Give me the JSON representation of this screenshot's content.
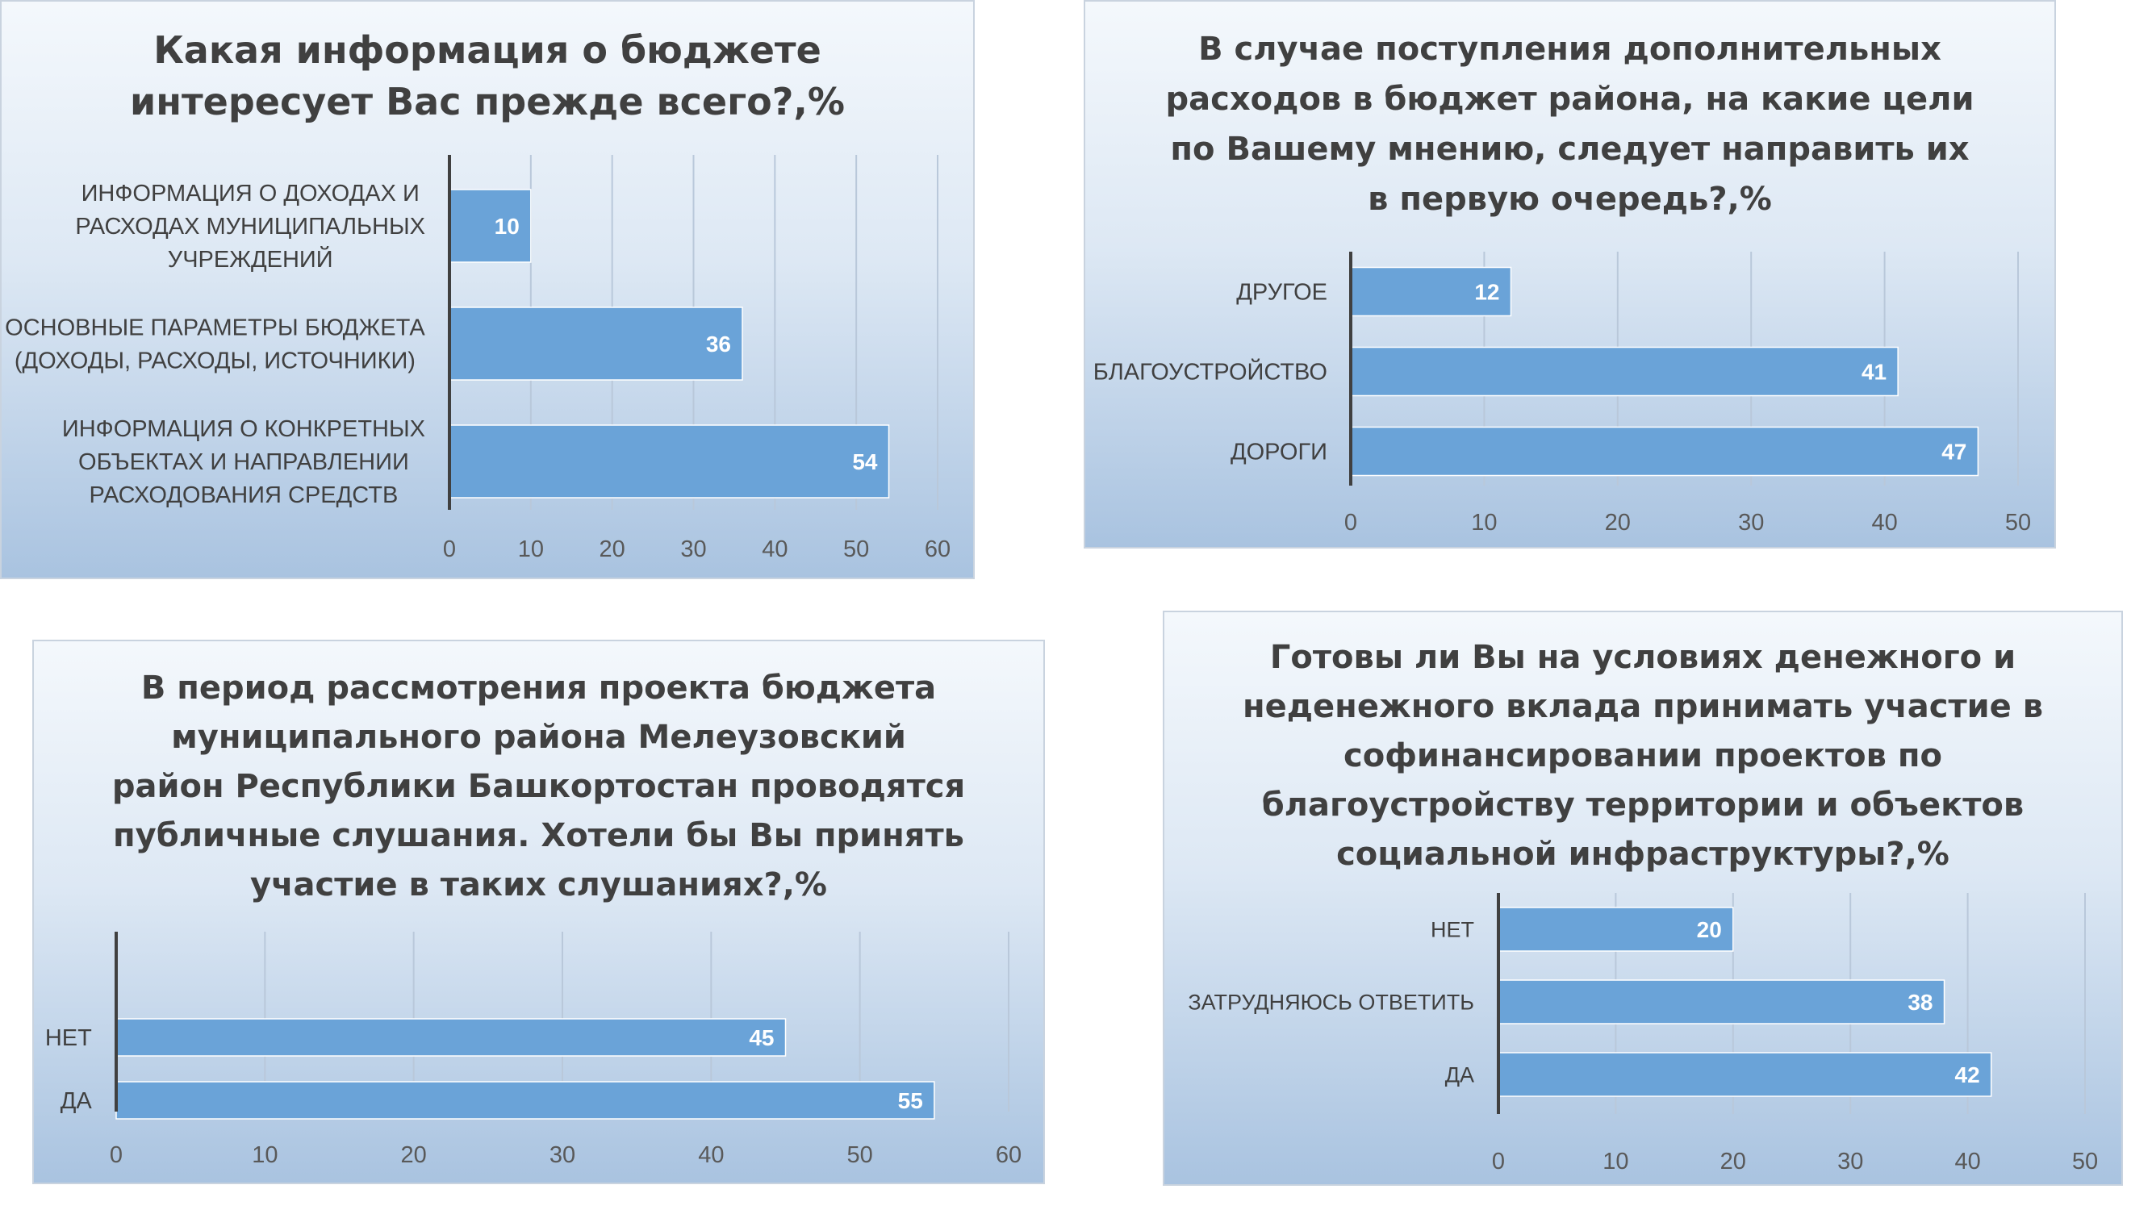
{
  "chart_data": [
    {
      "type": "bar",
      "orientation": "horizontal",
      "title": "Какая информация о бюджете\nинтересует Вас прежде всего?,%",
      "categories": [
        [
          "ИНФОРМАЦИЯ О ДОХОДАХ И",
          "РАСХОДАХ МУНИЦИПАЛЬНЫХ",
          "УЧРЕЖДЕНИЙ"
        ],
        [
          "ОСНОВНЫЕ ПАРАМЕТРЫ БЮДЖЕТА",
          "(ДОХОДЫ, РАСХОДЫ, ИСТОЧНИКИ)"
        ],
        [
          "ИНФОРМАЦИЯ О КОНКРЕТНЫХ",
          "ОБЪЕКТАХ И НАПРАВЛЕНИИ",
          "РАСХОДОВАНИЯ СРЕДСТВ"
        ]
      ],
      "values": [
        10,
        36,
        54
      ],
      "xlim": [
        0,
        60
      ],
      "ticks": [
        0,
        10,
        20,
        30,
        40,
        50,
        60
      ],
      "grid": true,
      "bar_color": "#6aa3d8"
    },
    {
      "type": "bar",
      "orientation": "horizontal",
      "title": "В случае поступления дополнительных\nрасходов в бюджет района, на какие цели\nпо Вашему мнению, следует направить их\nв первую очередь?,%",
      "categories": [
        [
          "ДРУГОЕ"
        ],
        [
          "БЛАГОУСТРОЙСТВО"
        ],
        [
          "ДОРОГИ"
        ]
      ],
      "values": [
        12,
        41,
        47
      ],
      "xlim": [
        0,
        50
      ],
      "ticks": [
        0,
        10,
        20,
        30,
        40,
        50
      ],
      "grid": true,
      "bar_color": "#6aa3d8"
    },
    {
      "type": "bar",
      "orientation": "horizontal",
      "title": "В период рассмотрения проекта бюджета\nмуниципального района Мелеузовский\nрайон Республики Башкортостан проводятся\nпубличные слушания. Хотели бы Вы принять\nучастие в таких слушаниях?,%",
      "categories": [
        [
          "НЕТ"
        ],
        [
          "ДА"
        ]
      ],
      "values": [
        45,
        55
      ],
      "xlim": [
        0,
        60
      ],
      "ticks": [
        0,
        10,
        20,
        30,
        40,
        50,
        60
      ],
      "grid": true,
      "bar_color": "#6aa3d8"
    },
    {
      "type": "bar",
      "orientation": "horizontal",
      "title": "Готовы ли Вы на условиях денежного и\nнеденежного вклада принимать участие в\nсофинансировании проектов по\nблагоустройству территории и объектов\nсоциальной инфраструктуры?,%",
      "categories": [
        [
          "НЕТ"
        ],
        [
          "ЗАТРУДНЯЮСЬ ОТВЕТИТЬ"
        ],
        [
          "ДА"
        ]
      ],
      "values": [
        20,
        38,
        42
      ],
      "xlim": [
        0,
        50
      ],
      "ticks": [
        0,
        10,
        20,
        30,
        40,
        50
      ],
      "grid": true,
      "bar_color": "#6aa3d8"
    }
  ]
}
